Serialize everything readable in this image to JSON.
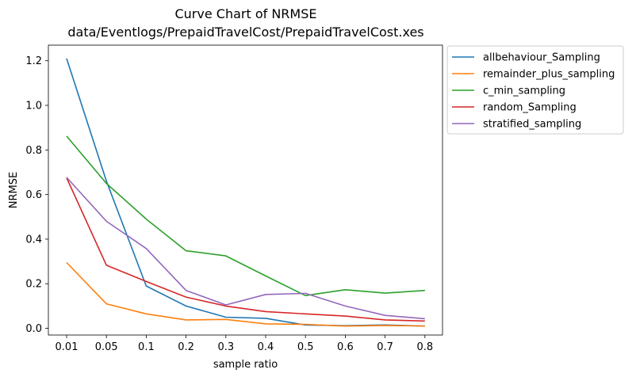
{
  "chart_data": {
    "type": "line",
    "title": "Curve Chart of NRMSE",
    "subtitle": "data/Eventlogs/PrepaidTravelCost/PrepaidTravelCost.xes",
    "xlabel": "sample ratio",
    "ylabel": "NRMSE",
    "categories": [
      "0.01",
      "0.05",
      "0.1",
      "0.2",
      "0.3",
      "0.4",
      "0.5",
      "0.6",
      "0.7",
      "0.8"
    ],
    "yticks": [
      "0.0",
      "0.2",
      "0.4",
      "0.6",
      "0.8",
      "1.0",
      "1.2"
    ],
    "ylim": [
      -0.03,
      1.27
    ],
    "grid": false,
    "legend_position": "outside-top-right",
    "series": [
      {
        "name": "allbehaviour_Sampling",
        "color": "#1f77b4",
        "values": [
          1.21,
          0.66,
          0.19,
          0.1,
          0.05,
          0.045,
          0.015,
          0.012,
          0.015,
          0.01
        ]
      },
      {
        "name": "remainder_plus_sampling",
        "color": "#ff7f0e",
        "values": [
          0.295,
          0.11,
          0.065,
          0.038,
          0.04,
          0.02,
          0.018,
          0.01,
          0.013,
          0.01
        ]
      },
      {
        "name": "c_min_sampling",
        "color": "#2ca02c",
        "values": [
          0.862,
          0.65,
          0.49,
          0.348,
          0.325,
          0.235,
          0.147,
          0.173,
          0.158,
          0.17
        ]
      },
      {
        "name": "random_Sampling",
        "color": "#d62728",
        "values": [
          0.675,
          0.283,
          0.21,
          0.14,
          0.1,
          0.075,
          0.065,
          0.055,
          0.038,
          0.033
        ]
      },
      {
        "name": "stratified_sampling",
        "color": "#9467bd",
        "values": [
          0.677,
          0.48,
          0.358,
          0.17,
          0.105,
          0.152,
          0.157,
          0.1,
          0.058,
          0.043
        ]
      }
    ]
  }
}
